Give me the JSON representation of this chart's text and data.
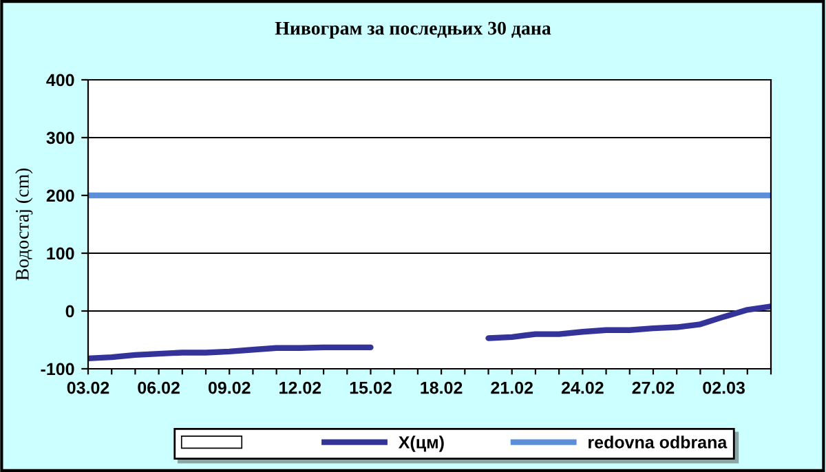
{
  "chart_data": {
    "type": "line",
    "title": "Нивограм за последњих 30 дана",
    "ylabel": "Водостај (cm)",
    "categories": [
      "03.02",
      null,
      null,
      "06.02",
      null,
      null,
      "09.02",
      null,
      null,
      "12.02",
      null,
      null,
      "15.02",
      null,
      null,
      "18.02",
      null,
      null,
      "21.02",
      null,
      null,
      "24.02",
      null,
      null,
      "27.02",
      null,
      null,
      "02.03",
      null,
      null
    ],
    "series": [
      {
        "type": "bar",
        "color": "#ffffff",
        "values": [
          null,
          null,
          null,
          null,
          null,
          null,
          null,
          null,
          null,
          null,
          null,
          null,
          null,
          null,
          null,
          null,
          null,
          null,
          null,
          null,
          null,
          null,
          null,
          null,
          null,
          null,
          null,
          null,
          null,
          null
        ]
      },
      {
        "name": "X(цм)",
        "color": "#333399",
        "values": [
          -82,
          -80,
          -76,
          -74,
          -72,
          -72,
          -70,
          -67,
          -64,
          -64,
          -63,
          -63,
          -63,
          null,
          null,
          null,
          null,
          -47,
          -45,
          -40,
          -40,
          -36,
          -33,
          -33,
          -30,
          -28,
          -23,
          -10,
          2,
          8
        ]
      },
      {
        "name": "redovna odbrana",
        "color": "#5b8fd9",
        "values": [
          200,
          200,
          200,
          200,
          200,
          200,
          200,
          200,
          200,
          200,
          200,
          200,
          200,
          200,
          200,
          200,
          200,
          200,
          200,
          200,
          200,
          200,
          200,
          200,
          200,
          200,
          200,
          200,
          200,
          200
        ]
      }
    ],
    "ylim": [
      -100,
      400
    ],
    "yticks": [
      -100,
      0,
      100,
      200,
      300,
      400
    ],
    "grid": "y",
    "legend": "bottom",
    "marker": "none",
    "line_style": "solid"
  }
}
